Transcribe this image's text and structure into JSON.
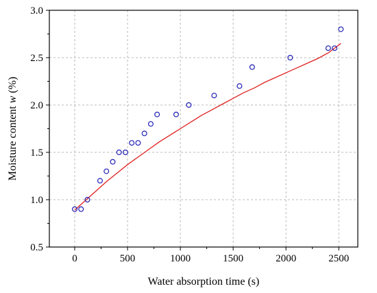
{
  "chart_data": {
    "type": "scatter",
    "xlabel": "Water absorption time (s)",
    "ylabel_parts": [
      "Moisture content ",
      "w",
      " (%)"
    ],
    "xlim": [
      -240,
      2680
    ],
    "ylim": [
      0.5,
      3.0
    ],
    "xticks": [
      0,
      500,
      1000,
      1500,
      2000,
      2500
    ],
    "yticks": [
      0.5,
      1.0,
      1.5,
      2.0,
      2.5,
      3.0
    ],
    "xtick_labels": [
      "0",
      "500",
      "1000",
      "1500",
      "2000",
      "2500"
    ],
    "ytick_labels": [
      "0.5",
      "1.0",
      "1.5",
      "2.0",
      "2.5",
      "3.0"
    ],
    "grid": true,
    "series": [
      {
        "kind": "points",
        "marker": "open-circle",
        "color": "#1f1fb4",
        "x": [
          0,
          60,
          120,
          240,
          300,
          360,
          420,
          480,
          540,
          600,
          660,
          720,
          780,
          960,
          1080,
          1320,
          1560,
          1680,
          2040,
          2400,
          2460,
          2520
        ],
        "y": [
          0.9,
          0.9,
          1.0,
          1.2,
          1.3,
          1.4,
          1.5,
          1.5,
          1.6,
          1.6,
          1.7,
          1.8,
          1.9,
          1.9,
          2.0,
          2.1,
          2.2,
          2.4,
          2.5,
          2.6,
          2.6,
          2.8
        ]
      },
      {
        "kind": "fit-line",
        "color": "#e02020",
        "x": [
          0,
          50,
          100,
          200,
          300,
          400,
          500,
          600,
          700,
          800,
          900,
          1000,
          1100,
          1200,
          1300,
          1400,
          1500,
          1600,
          1700,
          1800,
          1900,
          2000,
          2100,
          2200,
          2300,
          2400,
          2520
        ],
        "y": [
          0.89,
          0.94,
          0.99,
          1.09,
          1.19,
          1.28,
          1.37,
          1.45,
          1.53,
          1.61,
          1.68,
          1.75,
          1.82,
          1.89,
          1.95,
          2.01,
          2.07,
          2.13,
          2.18,
          2.24,
          2.29,
          2.34,
          2.39,
          2.44,
          2.49,
          2.55,
          2.65
        ]
      }
    ]
  }
}
